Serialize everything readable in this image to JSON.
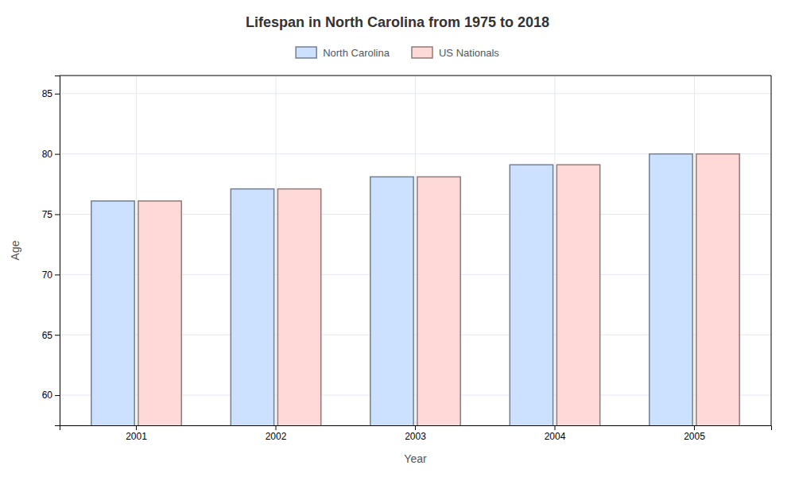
{
  "chart_data": {
    "type": "bar",
    "title": "Lifespan in North Carolina from 1975 to 2018",
    "xlabel": "Year",
    "ylabel": "Age",
    "categories": [
      "2001",
      "2002",
      "2003",
      "2004",
      "2005"
    ],
    "series": [
      {
        "name": "North Carolina",
        "color": "#cce0ff",
        "values": [
          76.1,
          77.1,
          78.1,
          79.1,
          80.0
        ]
      },
      {
        "name": "US Nationals",
        "color": "#ffd8d8",
        "values": [
          76.1,
          77.1,
          78.1,
          79.1,
          80.0
        ]
      }
    ],
    "ylim": [
      57.5,
      86.5
    ],
    "yticks": [
      60,
      65,
      70,
      75,
      80,
      85
    ],
    "grid": true,
    "legend": "top"
  }
}
